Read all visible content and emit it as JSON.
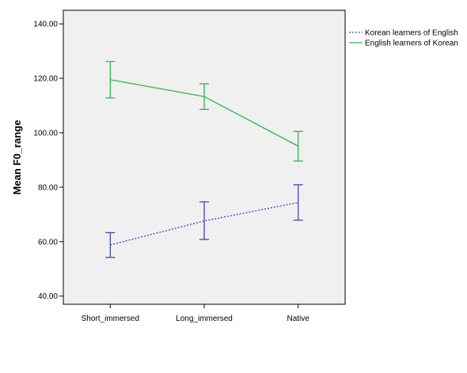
{
  "chart_data": {
    "type": "line",
    "title": "",
    "xlabel": "",
    "ylabel": "Mean F0_range",
    "categories": [
      "Short_immersed",
      "Long_immersed",
      "Native"
    ],
    "ylim": [
      37,
      145
    ],
    "yticks": [
      "40.00",
      "60.00",
      "80.00",
      "100.00",
      "120.00",
      "140.00"
    ],
    "ytick_values": [
      40,
      60,
      80,
      100,
      120,
      140
    ],
    "grid": false,
    "legend_position": "top-right outside",
    "series": [
      {
        "name": "Korean learners of English",
        "color": "#3a4bb5",
        "line_style": "dotted",
        "values": [
          58.8,
          67.6,
          74.4
        ],
        "error_low": [
          54.2,
          60.8,
          67.9
        ],
        "error_high": [
          63.3,
          74.6,
          80.9
        ]
      },
      {
        "name": "English learners of Korean",
        "color": "#2db84a",
        "line_style": "solid",
        "values": [
          119.5,
          113.3,
          95.1
        ],
        "error_low": [
          112.8,
          108.6,
          89.6
        ],
        "error_high": [
          126.2,
          118.0,
          100.5
        ]
      }
    ]
  }
}
